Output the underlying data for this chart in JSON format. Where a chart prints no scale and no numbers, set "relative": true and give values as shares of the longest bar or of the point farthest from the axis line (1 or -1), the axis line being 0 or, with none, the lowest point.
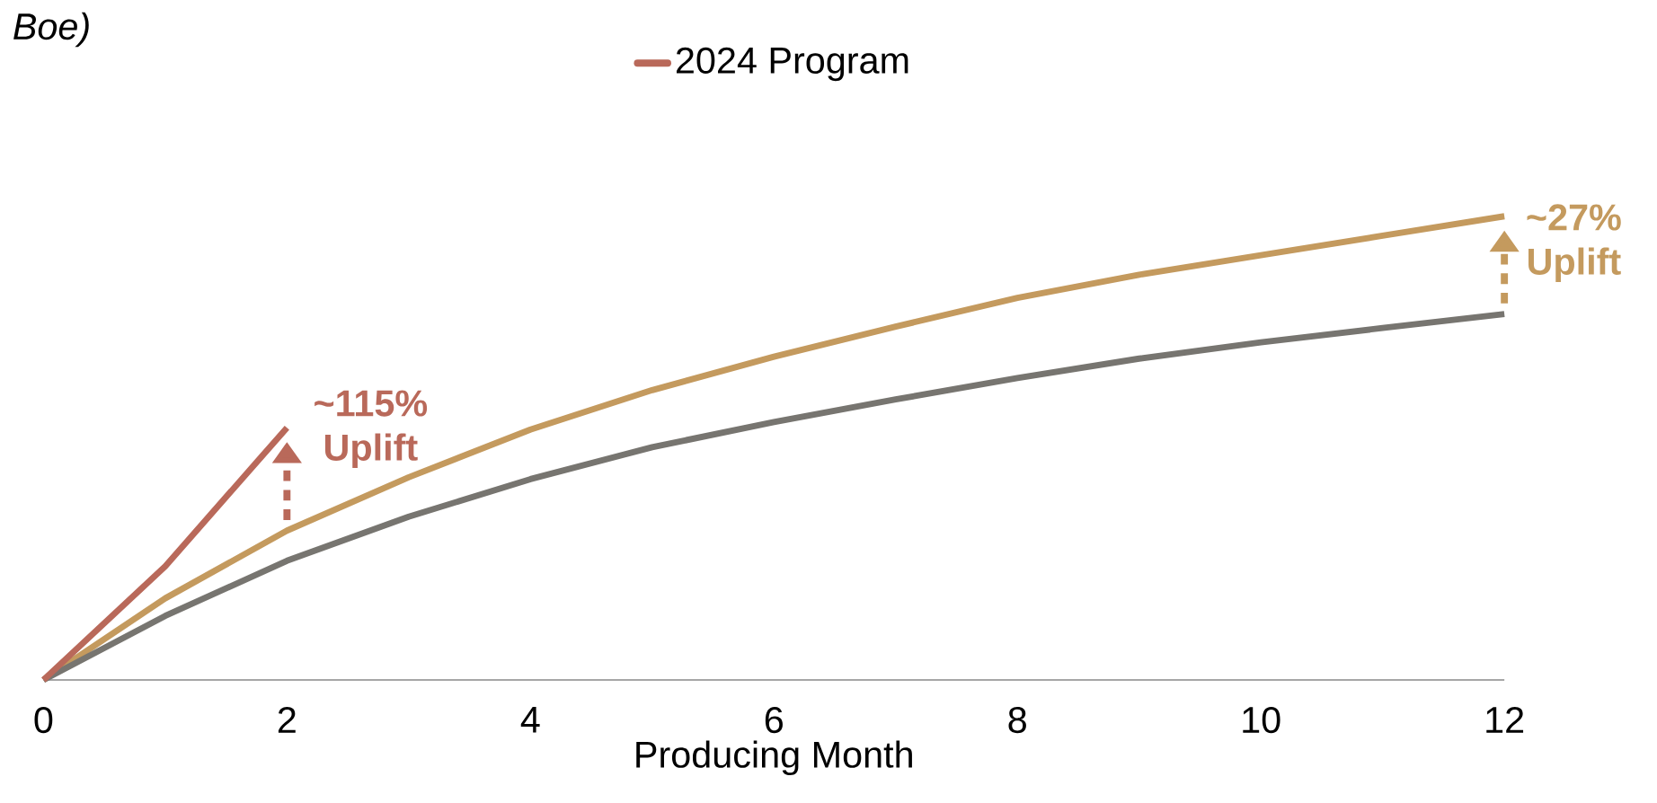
{
  "chart_data": {
    "type": "line",
    "relative": true,
    "xlabel": "Producing Month",
    "xlim": [
      0,
      12
    ],
    "xticks": [
      0,
      2,
      4,
      6,
      8,
      10,
      12
    ],
    "legend": "top",
    "line_style": "solid",
    "marker": "none",
    "series": [
      {
        "color": "#c49a5e",
        "x": [
          0,
          1,
          2,
          3,
          4,
          5,
          6,
          7,
          8,
          9,
          10,
          11,
          12
        ],
        "values": [
          0,
          0.176,
          0.322,
          0.437,
          0.54,
          0.625,
          0.697,
          0.762,
          0.824,
          0.874,
          0.916,
          0.958,
          1
        ]
      },
      {
        "color": "#777570",
        "x": [
          0,
          1,
          2,
          3,
          4,
          5,
          6,
          7,
          8,
          9,
          10,
          11,
          12
        ],
        "values": [
          0,
          0.138,
          0.257,
          0.352,
          0.433,
          0.502,
          0.556,
          0.605,
          0.651,
          0.693,
          0.728,
          0.759,
          0.789
        ]
      },
      {
        "name": "2024 Program",
        "color": "#b9695a",
        "x": [
          0,
          1,
          2
        ],
        "values": [
          0,
          0.245,
          0.544
        ]
      }
    ],
    "annotations": [
      "Boe)",
      {
        "text": "~115% Uplift",
        "x": 2,
        "y": 0.544
      },
      {
        "text": "~27% Uplift",
        "x": 12,
        "y": 1
      }
    ]
  }
}
